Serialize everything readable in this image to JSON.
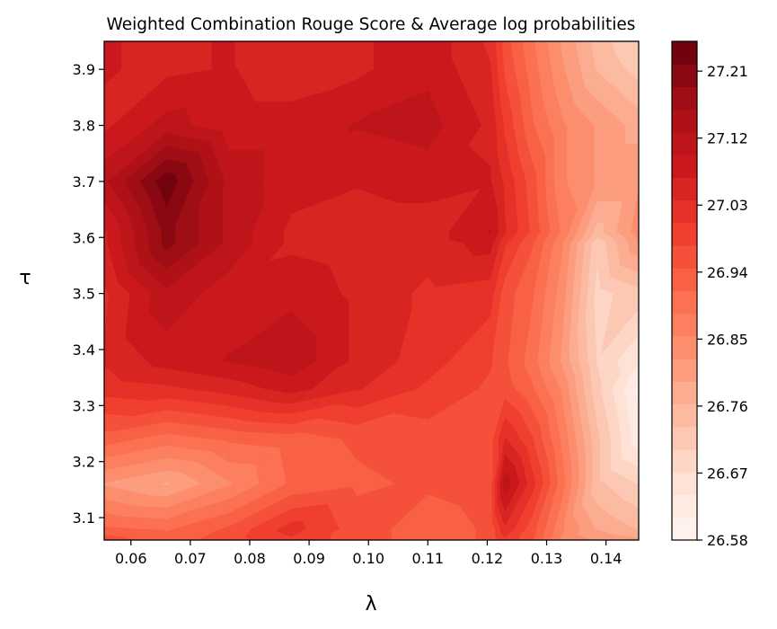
{
  "chart_data": {
    "type": "contourf",
    "title": "Weighted Combination Rouge Score & Average log probabilities",
    "xlabel": "λ",
    "ylabel": "τ",
    "xlim": [
      0.0555,
      0.1455
    ],
    "ylim": [
      3.06,
      3.95
    ],
    "x_ticks": [
      "0.06",
      "0.07",
      "0.08",
      "0.09",
      "0.10",
      "0.11",
      "0.12",
      "0.13",
      "0.14"
    ],
    "y_ticks": [
      "3.1",
      "3.2",
      "3.3",
      "3.4",
      "3.5",
      "3.6",
      "3.7",
      "3.8",
      "3.9"
    ],
    "colormap": "Reds",
    "colorbar": {
      "min": 26.58,
      "max": 27.25,
      "levels": 22,
      "tick_labels": [
        "26.58",
        "26.67",
        "26.76",
        "26.85",
        "26.94",
        "27.03",
        "27.12",
        "27.21"
      ],
      "tick_values": [
        26.58,
        26.67,
        26.76,
        26.85,
        26.94,
        27.03,
        27.12,
        27.21
      ]
    },
    "x": [
      0.0555,
      0.066,
      0.0765,
      0.087,
      0.098,
      0.11,
      0.1205,
      0.123,
      0.1275,
      0.1325,
      0.1385,
      0.1455
    ],
    "y": [
      3.06,
      3.08,
      3.16,
      3.24,
      3.33,
      3.38,
      3.5,
      3.59,
      3.61,
      3.7,
      3.8,
      3.9,
      3.95
    ],
    "z": [
      [
        26.96,
        26.93,
        26.96,
        27.0,
        26.96,
        26.93,
        26.95,
        27.0,
        26.95,
        26.85,
        26.82,
        26.8
      ],
      [
        26.92,
        26.91,
        26.95,
        27.02,
        26.96,
        26.93,
        26.95,
        27.03,
        26.96,
        26.86,
        26.79,
        26.76
      ],
      [
        26.82,
        26.79,
        26.85,
        26.92,
        26.94,
        26.95,
        26.96,
        27.12,
        27.02,
        26.9,
        26.74,
        26.7
      ],
      [
        26.93,
        26.9,
        26.92,
        26.93,
        26.95,
        26.96,
        26.96,
        27.04,
        26.98,
        26.88,
        26.74,
        26.62
      ],
      [
        27.02,
        27.03,
        27.05,
        27.08,
        27.04,
        27.0,
        26.97,
        26.96,
        26.92,
        26.85,
        26.71,
        26.6
      ],
      [
        27.04,
        27.08,
        27.1,
        27.12,
        27.06,
        27.02,
        26.98,
        26.95,
        26.9,
        26.82,
        26.7,
        26.64
      ],
      [
        27.03,
        27.12,
        27.08,
        27.09,
        27.06,
        27.03,
        27.02,
        26.96,
        26.92,
        26.84,
        26.69,
        26.72
      ],
      [
        27.06,
        27.2,
        27.12,
        27.06,
        27.05,
        27.05,
        27.08,
        27.01,
        26.95,
        26.86,
        26.71,
        26.82
      ],
      [
        27.06,
        27.2,
        27.12,
        27.06,
        27.05,
        27.05,
        27.1,
        27.04,
        26.97,
        26.88,
        26.75,
        26.84
      ],
      [
        27.12,
        27.24,
        27.12,
        27.08,
        27.07,
        27.08,
        27.07,
        27.03,
        26.96,
        26.86,
        26.82,
        26.82
      ],
      [
        27.06,
        27.11,
        27.08,
        27.08,
        27.1,
        27.11,
        27.06,
        27.0,
        26.92,
        26.86,
        26.82,
        26.78
      ],
      [
        27.07,
        27.06,
        27.07,
        27.05,
        27.06,
        27.09,
        27.04,
        26.97,
        26.9,
        26.83,
        26.76,
        26.72
      ],
      [
        27.07,
        27.06,
        27.07,
        27.04,
        27.06,
        27.09,
        27.03,
        26.96,
        26.89,
        26.82,
        26.75,
        26.7
      ]
    ]
  }
}
